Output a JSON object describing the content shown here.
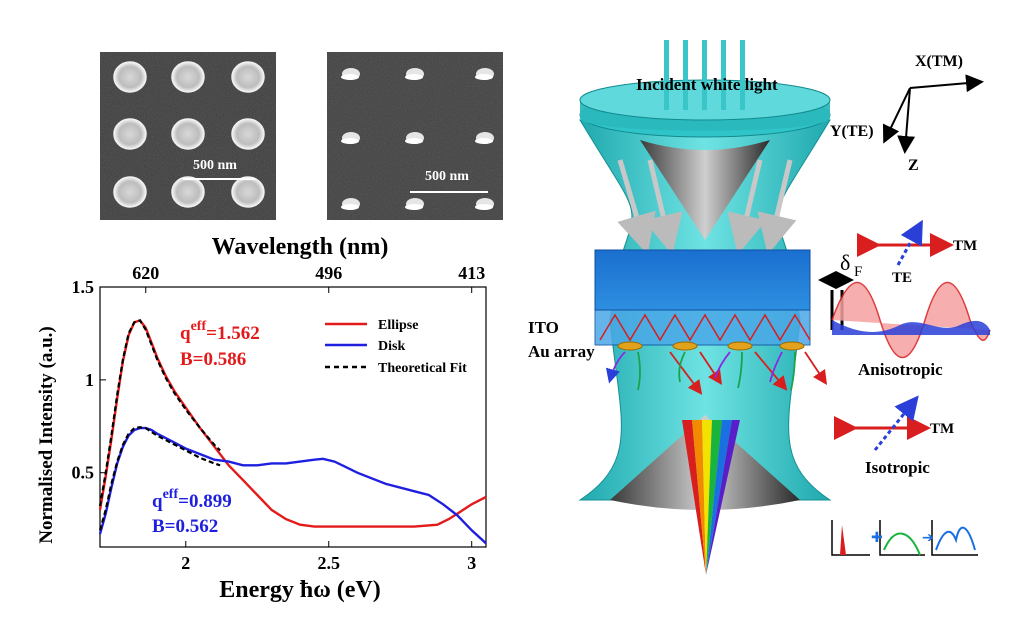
{
  "sem_images": {
    "ellipse_scale": "500 nm",
    "disk_scale": "500 nm"
  },
  "chart_data": {
    "type": "line",
    "xlabel": "Energy ħω (eV)",
    "ylabel": "Normalised Intensity (a.u.)",
    "top_xlabel": "Wavelength (nm)",
    "xlim": [
      1.7,
      3.05
    ],
    "ylim": [
      0.1,
      1.5
    ],
    "x_ticks": [
      "2",
      "2.5",
      "3"
    ],
    "x_tick_values": [
      2,
      2.5,
      3
    ],
    "y_ticks": [
      "0.5",
      "1",
      "1.5"
    ],
    "y_tick_values": [
      0.5,
      1,
      1.5
    ],
    "top_ticks": [
      "620",
      "496",
      "413"
    ],
    "top_tick_values": [
      2.0,
      2.5,
      3.0
    ],
    "legend_position": "top-right",
    "series": [
      {
        "name": "Ellipse",
        "color": "#e31a1c",
        "style": "solid",
        "x": [
          1.7,
          1.72,
          1.74,
          1.76,
          1.78,
          1.8,
          1.82,
          1.84,
          1.86,
          1.88,
          1.9,
          1.93,
          1.96,
          2.0,
          2.05,
          2.1,
          2.15,
          2.2,
          2.25,
          2.3,
          2.35,
          2.4,
          2.45,
          2.5,
          2.55,
          2.6,
          2.7,
          2.8,
          2.88,
          2.92,
          2.96,
          3.0,
          3.05
        ],
        "y": [
          0.3,
          0.48,
          0.68,
          0.9,
          1.1,
          1.24,
          1.31,
          1.32,
          1.28,
          1.2,
          1.12,
          1.02,
          0.94,
          0.85,
          0.74,
          0.64,
          0.54,
          0.46,
          0.38,
          0.3,
          0.25,
          0.22,
          0.21,
          0.21,
          0.21,
          0.21,
          0.21,
          0.21,
          0.22,
          0.25,
          0.29,
          0.33,
          0.37
        ]
      },
      {
        "name": "Disk",
        "color": "#1f1fe0",
        "style": "solid",
        "x": [
          1.7,
          1.72,
          1.74,
          1.76,
          1.78,
          1.8,
          1.82,
          1.84,
          1.86,
          1.88,
          1.9,
          1.95,
          2.0,
          2.05,
          2.1,
          2.15,
          2.2,
          2.25,
          2.3,
          2.35,
          2.4,
          2.45,
          2.48,
          2.52,
          2.56,
          2.6,
          2.7,
          2.8,
          2.85,
          2.9,
          2.95,
          3.0,
          3.05
        ],
        "y": [
          0.17,
          0.28,
          0.42,
          0.55,
          0.64,
          0.7,
          0.73,
          0.74,
          0.74,
          0.73,
          0.71,
          0.67,
          0.63,
          0.6,
          0.57,
          0.56,
          0.54,
          0.54,
          0.55,
          0.55,
          0.56,
          0.57,
          0.575,
          0.56,
          0.53,
          0.5,
          0.44,
          0.4,
          0.38,
          0.33,
          0.27,
          0.19,
          0.12
        ]
      },
      {
        "name": "Theoretical Fit",
        "color": "#000000",
        "style": "dashed",
        "x": [
          1.7,
          1.72,
          1.74,
          1.76,
          1.78,
          1.8,
          1.82,
          1.84,
          1.86,
          1.88,
          1.9,
          1.93,
          1.96,
          2.0,
          2.05,
          2.1,
          2.12
        ],
        "y": [
          0.32,
          0.5,
          0.7,
          0.92,
          1.11,
          1.25,
          1.31,
          1.32,
          1.27,
          1.19,
          1.11,
          1.01,
          0.93,
          0.84,
          0.74,
          0.65,
          0.62
        ]
      },
      {
        "name": "",
        "color": "#000000",
        "style": "dashed",
        "x": [
          1.7,
          1.72,
          1.74,
          1.76,
          1.78,
          1.8,
          1.82,
          1.84,
          1.86,
          1.88,
          1.9,
          1.95,
          2.0,
          2.05,
          2.1,
          2.12
        ],
        "y": [
          0.19,
          0.3,
          0.44,
          0.56,
          0.65,
          0.71,
          0.74,
          0.745,
          0.74,
          0.72,
          0.7,
          0.66,
          0.62,
          0.58,
          0.55,
          0.54
        ]
      }
    ],
    "annotations": {
      "ellipse_q": "q",
      "ellipse_q_sup": "eff",
      "ellipse_q_val": "=1.562",
      "ellipse_b": "B=0.586",
      "disk_q": "q",
      "disk_q_sup": "eff",
      "disk_q_val": "=0.899",
      "disk_b": "B=0.562"
    }
  },
  "schematic": {
    "incident_label": "Incident white light",
    "axis_x": "X(TM)",
    "axis_y": "Y(TE)",
    "axis_z": "Z",
    "ito_label": "ITO",
    "au_label": "Au array",
    "delta_label": "δ",
    "delta_sub": "F",
    "tm_label_1": "TM",
    "te_label": "TE",
    "anisotropic_label": "Anisotropic",
    "tm_label_2": "TM",
    "isotropic_label": "Isotropic",
    "colors": {
      "cyan": "#2ec4c8",
      "blue_layer": "#1f7fd6",
      "red_arrow": "#d81e1e",
      "blue_arrow": "#2a3fd8"
    }
  }
}
